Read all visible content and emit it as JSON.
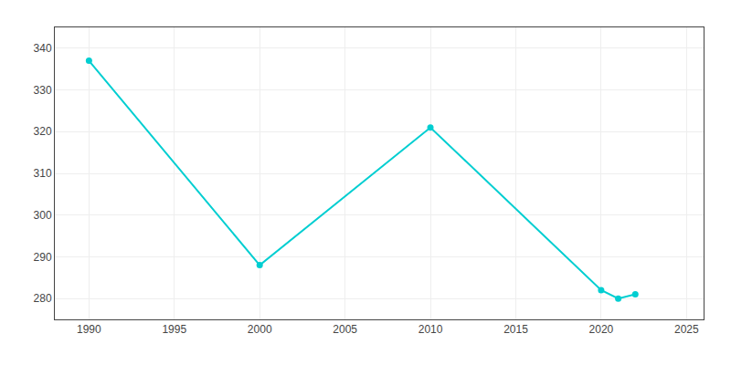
{
  "chart_data": {
    "type": "line",
    "x": [
      1990,
      2000,
      2010,
      2020,
      2021,
      2022
    ],
    "values": [
      337,
      288,
      321,
      282,
      280,
      281
    ],
    "color": "#00CED1",
    "marker": "circle",
    "xlim": [
      1988,
      2026
    ],
    "xticks": [
      1990,
      1995,
      2000,
      2005,
      2010,
      2015,
      2020,
      2025
    ],
    "ylim": [
      275,
      345
    ],
    "yticks": [
      280,
      290,
      300,
      310,
      320,
      330,
      340
    ],
    "grid": true
  }
}
